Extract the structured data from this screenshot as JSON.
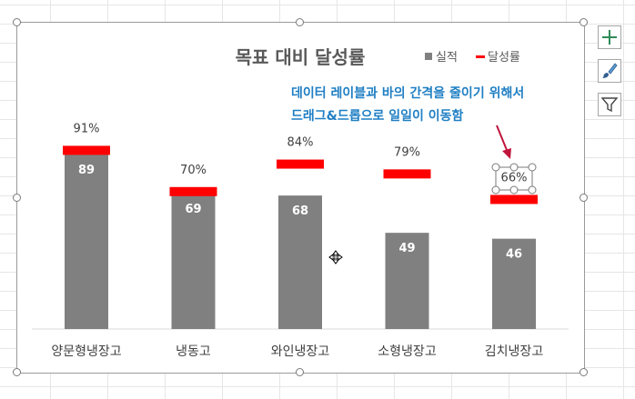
{
  "side_buttons": [
    {
      "name": "chart-elements-button",
      "icon": "plus-icon"
    },
    {
      "name": "chart-styles-button",
      "icon": "paintbrush-icon"
    },
    {
      "name": "chart-filters-button",
      "icon": "funnel-icon"
    }
  ],
  "annotation": {
    "line1": "데이터 레이블과 바의 간격을 줄이기 위해서",
    "line2": "드래그&드롭으로 일일이 이동함",
    "color": "#1f7fc4"
  },
  "chart_data": {
    "type": "bar",
    "title": "목표 대비 달성률",
    "categories": [
      "양문형냉장고",
      "냉동고",
      "와인냉장고",
      "소형냉장고",
      "김치냉장고"
    ],
    "series": [
      {
        "name": "실적",
        "type": "bar",
        "color": "#808080",
        "values": [
          89,
          69,
          68,
          49,
          46
        ],
        "labels": [
          "89",
          "69",
          "68",
          "49",
          "46"
        ]
      },
      {
        "name": "달성률",
        "type": "marker",
        "color": "#ff0000",
        "values": [
          91,
          70,
          84,
          79,
          66
        ],
        "labels": [
          "91%",
          "70%",
          "84%",
          "79%",
          "66%"
        ]
      }
    ],
    "ylim": [
      0,
      100
    ],
    "legend": "top-right",
    "grid": false
  }
}
